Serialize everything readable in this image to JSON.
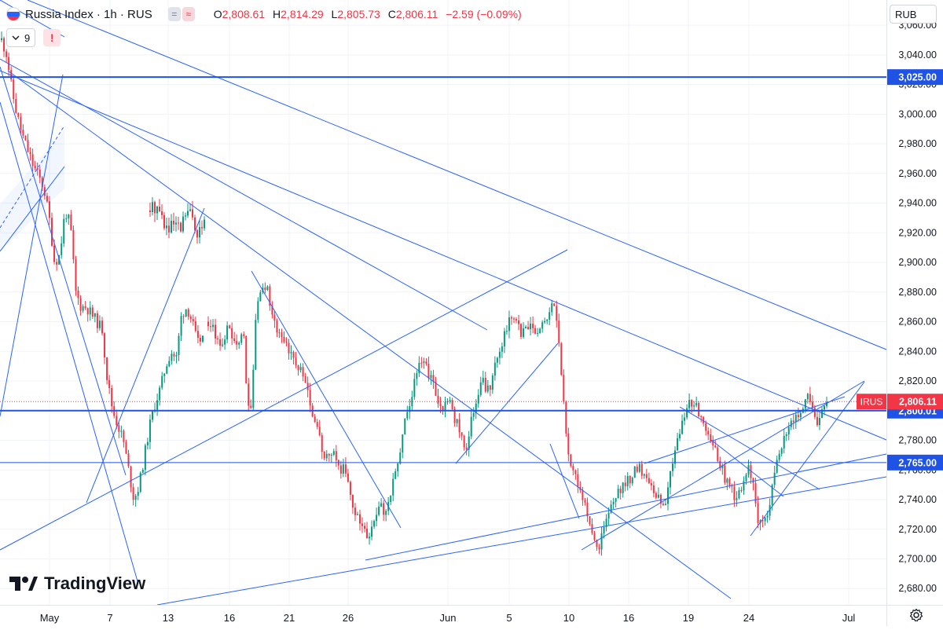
{
  "header": {
    "symbol_title": "Russia Index · 1h · RUS",
    "pill_left": "=",
    "pill_right": "≈",
    "open_label": "O",
    "open": "2,808.61",
    "high_label": "H",
    "high": "2,814.29",
    "low_label": "L",
    "low": "2,805.73",
    "close_label": "C",
    "close": "2,806.11",
    "change": "−2.59 (−0.09%)",
    "indicators_count": "9",
    "alert_symbol": "!"
  },
  "currency": "RUB",
  "logo_text": "TradingView",
  "colors": {
    "up": "#089981",
    "down": "#f23645",
    "drawing": "#2962ff",
    "hline": "#1e53e5",
    "price_label": "#f23645",
    "text": "#131722",
    "axis_text": "#131722",
    "grid": "#f0f3fa"
  },
  "chart_data": {
    "type": "candlestick",
    "y_axis_ticks": [
      2680,
      2700,
      2720,
      2740,
      2760,
      2780,
      2800,
      2820,
      2840,
      2860,
      2880,
      2900,
      2920,
      2940,
      2960,
      2980,
      3000,
      3020,
      3040,
      3060
    ],
    "ylim": [
      2669,
      3077
    ],
    "x_ticks": [
      "May",
      "7",
      "13",
      "16",
      "21",
      "26",
      "Jun",
      "5",
      "10",
      "16",
      "19",
      "24",
      "Jul"
    ],
    "last_price": {
      "symbol": "IRUS",
      "value": "2,806.11",
      "raw": 2806.11
    },
    "horizontal_levels": [
      {
        "label": "3,025.00",
        "value": 3025
      },
      {
        "label": "2,800.01",
        "value": 2800.01
      },
      {
        "label": "2,765.00",
        "value": 2765
      }
    ],
    "price_path": [
      [
        3050,
        3040,
        3015,
        2998,
        2985,
        2975,
        2965,
        2958,
        2950,
        2930,
        2900,
        2905,
        2935,
        2925,
        2880,
        2870,
        2870,
        2865,
        2860,
        2855,
        2820,
        2800,
        2790,
        2780,
        2760,
        2740,
        2750,
        2770,
        2790,
        2805,
        2815,
        2830,
        2840,
        2835,
        2865,
        2870,
        2860,
        2845,
        2850
      ],
      [
        2935,
        2940,
        2930,
        2920,
        2925,
        2920,
        2935,
        2930,
        2920,
        2925
      ],
      [
        2860,
        2855,
        2850,
        2845,
        2850,
        2855,
        2850,
        2840,
        2845,
        2855,
        2805,
        2800,
        2860,
        2875,
        2880,
        2885,
        2870,
        2860,
        2850,
        2845,
        2845,
        2840,
        2835,
        2830,
        2825,
        2815,
        2805,
        2790,
        2785,
        2775,
        2765,
        2775,
        2770,
        2765,
        2760,
        2760,
        2745,
        2735,
        2728,
        2722,
        2718,
        2715,
        2722,
        2730,
        2735,
        2730,
        2738,
        2750,
        2760,
        2775,
        2790,
        2800,
        2812,
        2825,
        2835,
        2832,
        2828,
        2820,
        2815,
        2805,
        2800,
        2810,
        2805,
        2795,
        2790,
        2782,
        2772,
        2790,
        2800,
        2810,
        2820,
        2815,
        2812,
        2825,
        2840,
        2845,
        2855,
        2860,
        2865,
        2860,
        2850,
        2855,
        2860,
        2855,
        2850,
        2855,
        2860,
        2865,
        2875,
        2860,
        2835,
        2800,
        2770,
        2762,
        2755,
        2745,
        2738,
        2730,
        2722,
        2712,
        2708,
        2720,
        2728,
        2735,
        2740,
        2745,
        2748,
        2752,
        2755,
        2760,
        2762,
        2758,
        2755,
        2752,
        2745,
        2740,
        2735,
        2738,
        2760,
        2770,
        2780,
        2790,
        2800,
        2808,
        2805,
        2800,
        2795,
        2790,
        2785,
        2780,
        2770,
        2762,
        2755,
        2750,
        2745,
        2740,
        2745,
        2755,
        2760,
        2755,
        2730,
        2722,
        2725,
        2730,
        2745,
        2765,
        2775,
        2780,
        2785,
        2790,
        2795,
        2800,
        2805,
        2810,
        2808,
        2795,
        2790,
        2800,
        2806.11
      ]
    ]
  }
}
